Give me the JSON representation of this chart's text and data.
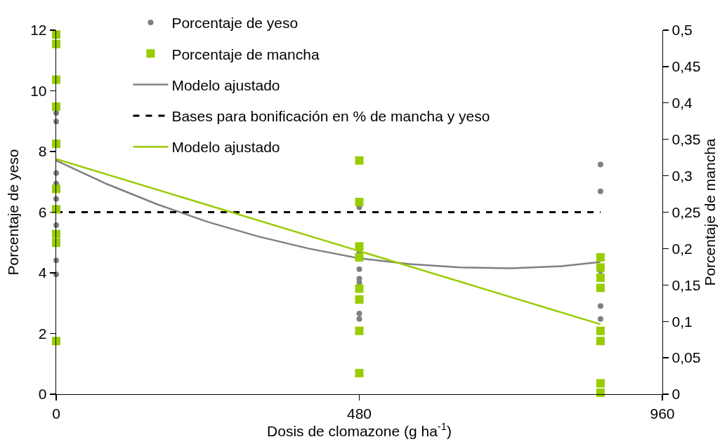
{
  "chart_data": {
    "type": "scatter",
    "xlabel": "Dosis de clomazone (g ha$^{-1}$)",
    "ylabel": "Porcentaje de yeso",
    "y2label": "Porcentaje de mancha",
    "xlim": [
      0,
      960
    ],
    "xticks": [
      0,
      480,
      960
    ],
    "ylim": [
      0,
      12
    ],
    "yticks": [
      0,
      2,
      4,
      6,
      8,
      10,
      12
    ],
    "y2lim": [
      0,
      0.5
    ],
    "y2ticks": [
      0,
      {
        "value": 0.05,
        "label": "0,05"
      },
      {
        "value": 0.1,
        "label": "0,1"
      },
      {
        "value": 0.15,
        "label": "0,15"
      },
      {
        "value": 0.2,
        "label": "0,2"
      },
      {
        "value": 0.25,
        "label": "0,25"
      },
      {
        "value": 0.3,
        "label": "0,3"
      },
      {
        "value": 0.35,
        "label": "0,35"
      },
      {
        "value": 0.4,
        "label": "0,4"
      },
      {
        "value": 0.45,
        "label": "0,45"
      },
      {
        "value": 0.5,
        "label": "0,5"
      }
    ],
    "legend": "top left",
    "series": [
      {
        "name": "Porcentaje de yeso",
        "type": "scatter",
        "marker": "circle",
        "color": "#808080",
        "x": [
          0,
          0,
          0,
          0,
          0,
          0,
          0,
          0,
          480,
          480,
          480,
          480,
          480,
          480,
          480,
          862,
          862,
          862,
          862,
          862
        ],
        "values": [
          9.27,
          8.99,
          7.29,
          6.94,
          6.44,
          5.57,
          4.41,
          3.95,
          6.16,
          4.68,
          4.12,
          3.81,
          3.68,
          2.66,
          2.48,
          7.57,
          6.69,
          4.07,
          2.91,
          2.48
        ]
      },
      {
        "name": "Porcentaje de mancha",
        "type": "scatter",
        "marker": "square",
        "color": "#99cc00",
        "axis": "y2",
        "x": [
          0,
          0,
          0,
          0,
          0,
          0,
          0,
          0,
          0,
          0,
          480,
          480,
          480,
          480,
          480,
          480,
          480,
          480,
          862,
          862,
          862,
          862,
          862,
          862,
          862,
          862
        ],
        "values": [
          0.494,
          0.481,
          0.432,
          0.395,
          0.344,
          0.282,
          0.254,
          0.22,
          0.208,
          0.073,
          0.321,
          0.264,
          0.203,
          0.188,
          0.145,
          0.13,
          0.087,
          0.029,
          0.188,
          0.174,
          0.16,
          0.146,
          0.087,
          0.073,
          0.015,
          0.002
        ]
      },
      {
        "name": "Modelo ajustado",
        "type": "line",
        "line_style": "solid",
        "color": "#808080",
        "x": [
          0,
          80,
          160,
          240,
          320,
          400,
          480,
          560,
          640,
          720,
          800,
          862
        ],
        "values": [
          7.7,
          6.93,
          6.26,
          5.68,
          5.2,
          4.8,
          4.48,
          4.29,
          4.18,
          4.15,
          4.22,
          4.36
        ]
      },
      {
        "name": "Bases para bonificación en % de mancha y yeso",
        "type": "line",
        "line_style": "dashed",
        "color": "#000000",
        "x": [
          0,
          862
        ],
        "values": [
          6,
          6
        ]
      },
      {
        "name": "Modelo ajustado",
        "type": "line",
        "line_style": "solid",
        "color": "#99cc00",
        "axis": "y2",
        "x": [
          0,
          862
        ],
        "values": [
          0.323,
          0.096
        ]
      }
    ]
  }
}
